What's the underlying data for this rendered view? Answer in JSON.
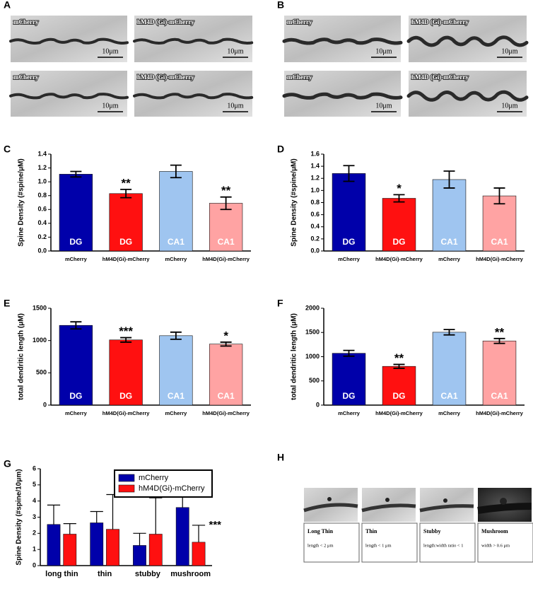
{
  "micrographs": [
    {
      "panel": "A",
      "images": [
        {
          "label": "mCherry",
          "scale": "10μm"
        },
        {
          "label": "hM4D (Gi)-mCherry",
          "scale": "10μm"
        },
        {
          "label": "mCherry",
          "scale": "10μm"
        },
        {
          "label": "hM4D (Gi)-mCherry",
          "scale": "10μm"
        }
      ]
    },
    {
      "panel": "B",
      "images": [
        {
          "label": "mCherry",
          "scale": "10μm"
        },
        {
          "label": "hM4D (Gi)-mCherry",
          "scale": "10μm"
        },
        {
          "label": "mCherry",
          "scale": "10μm"
        },
        {
          "label": "hM4D (Gi)-mCherry",
          "scale": "10μm"
        }
      ]
    }
  ],
  "spine_types": {
    "panel": "H",
    "items": [
      {
        "name": "Long Thin",
        "criterion": "length < 2 μm"
      },
      {
        "name": "Thin",
        "criterion": "length < 1 μm"
      },
      {
        "name": "Stubby",
        "criterion": "length:width ratio < 1"
      },
      {
        "name": "Mushroom",
        "criterion": "width > 0.6 μm"
      }
    ]
  },
  "chart_data": [
    {
      "panel": "C",
      "type": "bar",
      "ylabel": "Spine Density (#spine/μM)",
      "categories": [
        "mCherry",
        "hM4D(Gi)-mCherry",
        "mCherry",
        "hM4D(Gi)-mCherry"
      ],
      "values": [
        1.11,
        0.83,
        1.15,
        0.69
      ],
      "errors": [
        0.04,
        0.06,
        0.09,
        0.09
      ],
      "colors": [
        "#0000aa",
        "#ff1010",
        "#9fc5f0",
        "#ffa3a3"
      ],
      "bar_labels": [
        "DG",
        "DG",
        "CA1",
        "CA1"
      ],
      "annotations": [
        null,
        "**",
        null,
        "**"
      ],
      "ylim": [
        0,
        1.4
      ],
      "yticks": [
        {
          "value": 0,
          "label": "0.0"
        },
        0.2,
        0.4,
        0.6,
        0.8,
        {
          "value": 1,
          "label": "1.0"
        },
        1.2,
        1.4
      ]
    },
    {
      "panel": "D",
      "type": "bar",
      "ylabel": "Spine Density (#spine/μM)",
      "categories": [
        "mCherry",
        "hM4D(Gi)-mCherry",
        "mCherry",
        "hM4D(Gi)-mCherry"
      ],
      "values": [
        1.28,
        0.87,
        1.18,
        0.91
      ],
      "errors": [
        0.13,
        0.06,
        0.14,
        0.13
      ],
      "colors": [
        "#0000aa",
        "#ff1010",
        "#9fc5f0",
        "#ffa3a3"
      ],
      "bar_labels": [
        "DG",
        "DG",
        "CA1",
        "CA1"
      ],
      "annotations": [
        null,
        "*",
        null,
        null
      ],
      "ylim": [
        0,
        1.6
      ],
      "yticks": [
        {
          "value": 0,
          "label": "0.0"
        },
        0.2,
        0.4,
        0.6,
        0.8,
        {
          "value": 1,
          "label": "1.0"
        },
        1.2,
        1.4,
        1.6
      ]
    },
    {
      "panel": "E",
      "type": "bar",
      "ylabel": "total dendritic length (μM)",
      "categories": [
        "mCherry",
        "hM4D(Gi)-mCherry",
        "mCherry",
        "hM4D(Gi)-mCherry"
      ],
      "values": [
        1235,
        1010,
        1075,
        945
      ],
      "errors": [
        55,
        35,
        55,
        30
      ],
      "colors": [
        "#0000aa",
        "#ff1010",
        "#9fc5f0",
        "#ffa3a3"
      ],
      "bar_labels": [
        "DG",
        "DG",
        "CA1",
        "CA1"
      ],
      "annotations": [
        null,
        "***",
        null,
        "*"
      ],
      "ylim": [
        0,
        1500
      ],
      "yticks": [
        0,
        500,
        1000,
        1500
      ]
    },
    {
      "panel": "F",
      "type": "bar",
      "ylabel": "total dendritic length (μM)",
      "categories": [
        "mCherry",
        "hM4D(Gi)-mCherry",
        "mCherry",
        "hM4D(Gi)-mCherry"
      ],
      "values": [
        1070,
        800,
        1505,
        1325
      ],
      "errors": [
        60,
        40,
        55,
        50
      ],
      "colors": [
        "#0000aa",
        "#ff1010",
        "#9fc5f0",
        "#ffa3a3"
      ],
      "bar_labels": [
        "DG",
        "DG",
        "CA1",
        "CA1"
      ],
      "annotations": [
        null,
        "**",
        null,
        "**"
      ],
      "ylim": [
        0,
        2000
      ],
      "yticks": [
        0,
        500,
        1000,
        1500,
        2000
      ]
    },
    {
      "panel": "G",
      "type": "grouped_bar",
      "ylabel": "Spine Density (#spine/10μm)",
      "categories": [
        "long thin",
        "thin",
        "stubby",
        "mushroom"
      ],
      "series": [
        {
          "name": "mCherry",
          "color": "#0000aa",
          "values": [
            2.55,
            2.65,
            1.25,
            3.6
          ],
          "errors": [
            1.2,
            0.7,
            0.75,
            1.0
          ]
        },
        {
          "name": "hM4D(Gi)-mCherry",
          "color": "#ff1010",
          "values": [
            1.95,
            2.25,
            1.95,
            1.45
          ],
          "errors": [
            0.65,
            2.15,
            2.25,
            1.05
          ]
        }
      ],
      "annotations": [
        null,
        null,
        null,
        "***"
      ],
      "legend": "upper right",
      "ylim": [
        0,
        6
      ],
      "yticks": [
        0,
        1,
        2,
        3,
        4,
        5,
        6
      ]
    }
  ]
}
